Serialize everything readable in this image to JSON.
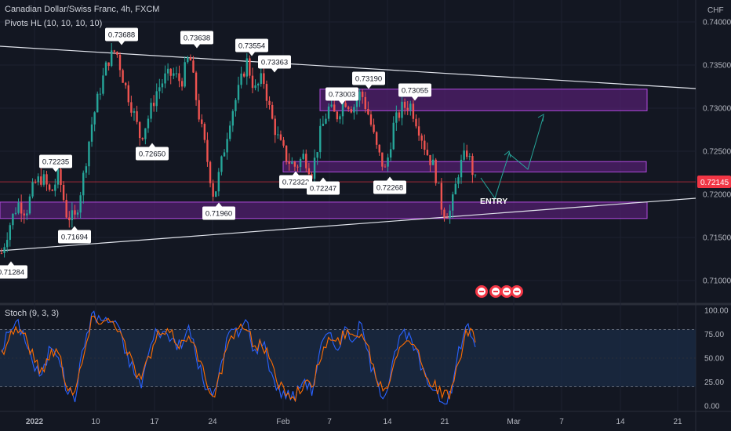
{
  "header": {
    "symbol_title": "Canadian Dollar/Swiss Franc, 4h, FXCM",
    "pivots_indicator": "Pivots HL (10, 10, 10, 10)",
    "stoch_indicator": "Stoch (9, 3, 3)",
    "currency": "CHF"
  },
  "annotations": {
    "entry_label": "ENTRY",
    "last_price": "0.72145"
  },
  "colors": {
    "background": "#131722",
    "bull": "#26a69a",
    "bear": "#ef5350",
    "zone_fill": "#5b1f7a",
    "zone_border": "#b34ce0",
    "trendline": "#e0e3eb",
    "arrow": "#26a69a",
    "stoch_k": "#2962ff",
    "stoch_d": "#ff6d00",
    "stoch_band": "#1a2a44",
    "price_tag": "#f23645"
  },
  "chart_data": [
    {
      "type": "candlestick",
      "title": "Canadian Dollar/Swiss Franc, 4h, FXCM",
      "x_tick_labels": [
        "2022",
        "10",
        "17",
        "24",
        "Feb",
        "7",
        "14",
        "21",
        "Mar",
        "7",
        "14",
        "21"
      ],
      "y_tick_labels": [
        "0.74000",
        "0.73500",
        "0.73000",
        "0.72500",
        "0.72000",
        "0.71500",
        "0.71000"
      ],
      "ylim": [
        0.7075,
        0.7428
      ],
      "y_unit": "CHF",
      "last_price": 0.72145,
      "pivot_labels": [
        {
          "value": "0.73688",
          "type": "high"
        },
        {
          "value": "0.73638",
          "type": "high"
        },
        {
          "value": "0.73554",
          "type": "high"
        },
        {
          "value": "0.73363",
          "type": "high"
        },
        {
          "value": "0.73003",
          "type": "high"
        },
        {
          "value": "0.73190",
          "type": "high"
        },
        {
          "value": "0.73055",
          "type": "high"
        },
        {
          "value": "0.72235",
          "type": "high"
        },
        {
          "value": "0.72650",
          "type": "low"
        },
        {
          "value": "0.72322",
          "type": "low"
        },
        {
          "value": "0.72247",
          "type": "low"
        },
        {
          "value": "0.72268",
          "type": "low"
        },
        {
          "value": "0.71694",
          "type": "low"
        },
        {
          "value": "0.71960",
          "type": "low"
        },
        {
          "value": "0.71284",
          "type": "low"
        }
      ],
      "zones": [
        {
          "low": 0.7297,
          "high": 0.7322
        },
        {
          "low": 0.7226,
          "high": 0.7238
        },
        {
          "low": 0.7172,
          "high": 0.7191
        }
      ],
      "price_path": [
        0.7132,
        0.7165,
        0.719,
        0.718,
        0.7212,
        0.722,
        0.72,
        0.7223,
        0.7175,
        0.7172,
        0.722,
        0.728,
        0.732,
        0.7355,
        0.7368,
        0.733,
        0.73,
        0.7265,
        0.729,
        0.732,
        0.7335,
        0.734,
        0.733,
        0.7363,
        0.73,
        0.725,
        0.7196,
        0.724,
        0.729,
        0.732,
        0.7355,
        0.732,
        0.7336,
        0.729,
        0.726,
        0.724,
        0.7232,
        0.7245,
        0.7225,
        0.727,
        0.73,
        0.729,
        0.731,
        0.73,
        0.7319,
        0.729,
        0.725,
        0.7227,
        0.728,
        0.73,
        0.7305,
        0.728,
        0.725,
        0.723,
        0.718,
        0.718,
        0.723,
        0.725,
        0.7215
      ]
    },
    {
      "type": "line",
      "title": "Stoch (9, 3, 3)",
      "y_tick_labels": [
        "100.00",
        "75.00",
        "50.00",
        "25.00",
        "0.00"
      ],
      "ylim": [
        -5,
        102
      ],
      "bands": [
        20,
        80
      ],
      "series": [
        {
          "name": "K",
          "values": [
            60,
            80,
            85,
            70,
            40,
            30,
            65,
            55,
            15,
            10,
            60,
            95,
            92,
            88,
            90,
            60,
            40,
            20,
            55,
            80,
            75,
            70,
            60,
            85,
            45,
            20,
            8,
            50,
            80,
            75,
            90,
            55,
            70,
            35,
            15,
            12,
            10,
            30,
            15,
            60,
            75,
            60,
            80,
            70,
            85,
            50,
            20,
            12,
            55,
            75,
            70,
            50,
            25,
            20,
            5,
            10,
            60,
            85,
            65
          ]
        },
        {
          "name": "D",
          "values": [
            55,
            75,
            82,
            72,
            48,
            35,
            58,
            56,
            22,
            15,
            50,
            88,
            92,
            89,
            88,
            66,
            45,
            28,
            48,
            72,
            76,
            72,
            63,
            78,
            52,
            28,
            12,
            40,
            72,
            76,
            85,
            62,
            66,
            42,
            22,
            15,
            12,
            25,
            18,
            50,
            70,
            64,
            76,
            72,
            80,
            58,
            28,
            16,
            45,
            70,
            72,
            56,
            32,
            22,
            10,
            12,
            48,
            78,
            70
          ]
        }
      ]
    }
  ]
}
